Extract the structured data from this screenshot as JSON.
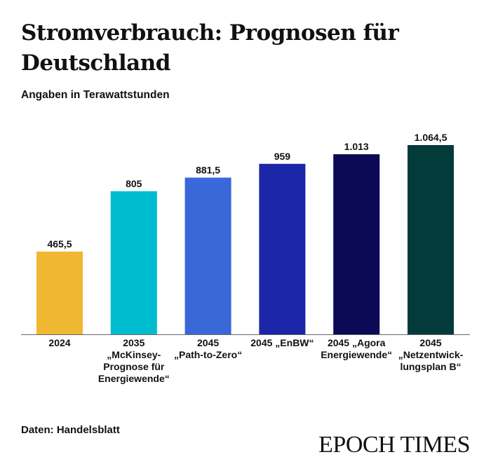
{
  "title": "Stromverbrauch: Prognosen für Deutschland",
  "subtitle": "Angaben in Terawattstunden",
  "source": "Daten: Handelsblatt",
  "logo": "EPOCH TIMES",
  "chart_data": {
    "type": "bar",
    "title": "Stromverbrauch: Prognosen für Deutschland",
    "ylabel": "Angaben in Terawattstunden",
    "categories": [
      "2024",
      "2035\n„McKinsey-\nPrognose für\nEnergiewende“",
      "2045\n„Path-to-Zero“",
      "2045 „EnBW“",
      "2045 „Agora\nEnergiewende“",
      "2045\n„Netzentwick-\nlungsplan B“"
    ],
    "values": [
      465.5,
      805,
      881.5,
      959,
      1013,
      1064.5
    ],
    "value_labels": [
      "465,5",
      "805",
      "881,5",
      "959",
      "1.013",
      "1.064,5"
    ],
    "colors": [
      "#f0b731",
      "#00bccf",
      "#3b68d9",
      "#1b26a8",
      "#0c0a57",
      "#033a3a"
    ],
    "ylim": [
      0,
      1064.5
    ],
    "grid": false
  }
}
